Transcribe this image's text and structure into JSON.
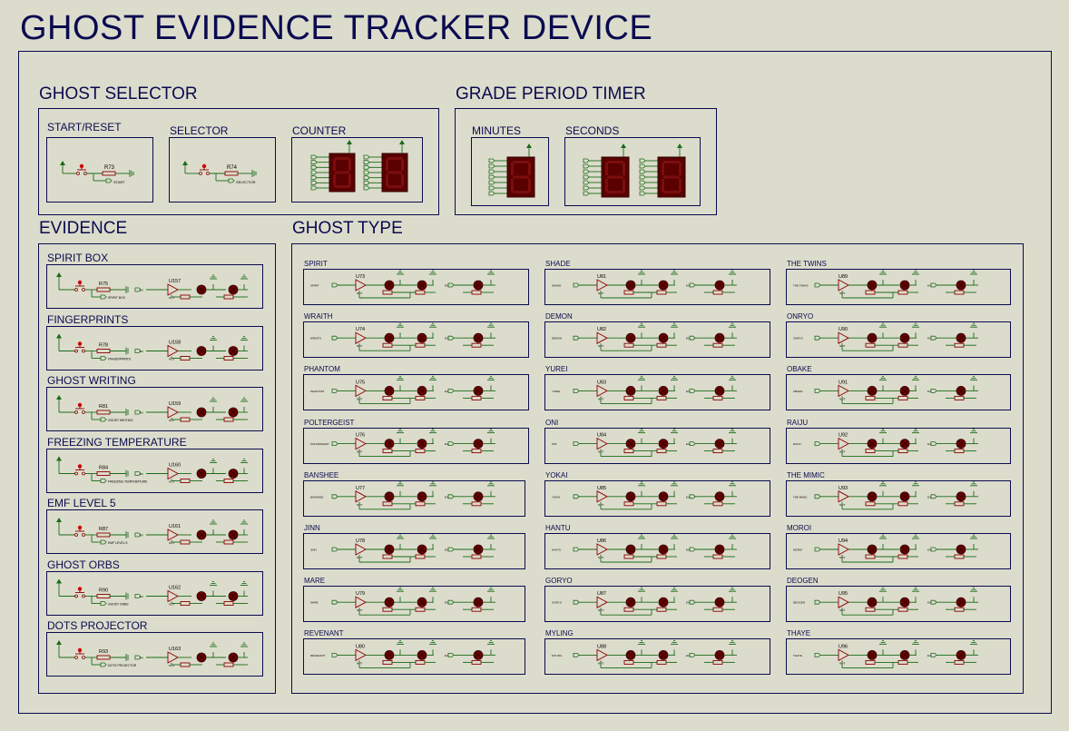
{
  "title": "GHOST EVIDENCE TRACKER DEVICE",
  "colors": {
    "background": "#dcdccc",
    "wire": "#1a6b1a",
    "component": "#8b0000",
    "text": "#0a0a50"
  },
  "ghost_selector": {
    "heading": "GHOST SELECTOR",
    "start_reset": {
      "label": "START/RESET",
      "resistor": "R73",
      "net": "START"
    },
    "selector": {
      "label": "SELECTOR",
      "resistor": "R74",
      "net": "SELECTOR"
    },
    "counter": {
      "label": "COUNTER"
    }
  },
  "timer": {
    "heading": "GRADE PERIOD TIMER",
    "minutes_label": "MINUTES",
    "seconds_label": "SECONDS"
  },
  "evidence": {
    "heading": "EVIDENCE",
    "items": [
      {
        "label": "SPIRIT BOX",
        "resistor": "R75",
        "chip": "U157",
        "net": "SPIRIT BOX"
      },
      {
        "label": "FINGERPRINTS",
        "resistor": "R78",
        "chip": "U158",
        "net": "FINGERPRINTS"
      },
      {
        "label": "GHOST WRITING",
        "resistor": "R81",
        "chip": "U159",
        "net": "GHOST WRITING"
      },
      {
        "label": "FREEZING TEMPERATURE",
        "resistor": "R84",
        "chip": "U160",
        "net": "FREEZING TEMPERATURE"
      },
      {
        "label": "EMF LEVEL 5",
        "resistor": "R87",
        "chip": "U161",
        "net": "EMF LEVEL 5"
      },
      {
        "label": "GHOST ORBS",
        "resistor": "R90",
        "chip": "U162",
        "net": "GHOST ORBS"
      },
      {
        "label": "DOTS PROJECTOR",
        "resistor": "R93",
        "chip": "U163",
        "net": "DOTS PROJECTOR"
      }
    ]
  },
  "ghost_type": {
    "heading": "GHOST TYPE",
    "columns": [
      [
        {
          "label": "SPIRIT",
          "chip": "U73"
        },
        {
          "label": "WRAITH",
          "chip": "U74"
        },
        {
          "label": "PHANTOM",
          "chip": "U75"
        },
        {
          "label": "POLTERGEIST",
          "chip": "U76"
        },
        {
          "label": "BANSHEE",
          "chip": "U77"
        },
        {
          "label": "JINN",
          "chip": "U78"
        },
        {
          "label": "MARE",
          "chip": "U79"
        },
        {
          "label": "REVENANT",
          "chip": "U80"
        }
      ],
      [
        {
          "label": "SHADE",
          "chip": "U81"
        },
        {
          "label": "DEMON",
          "chip": "U82"
        },
        {
          "label": "YUREI",
          "chip": "U83"
        },
        {
          "label": "ONI",
          "chip": "U84"
        },
        {
          "label": "YOKAI",
          "chip": "U85"
        },
        {
          "label": "HANTU",
          "chip": "U86"
        },
        {
          "label": "GORYO",
          "chip": "U87"
        },
        {
          "label": "MYLING",
          "chip": "U88"
        }
      ],
      [
        {
          "label": "THE TWINS",
          "chip": "U89"
        },
        {
          "label": "ONRYO",
          "chip": "U90"
        },
        {
          "label": "OBAKE",
          "chip": "U91"
        },
        {
          "label": "RAIJU",
          "chip": "U92"
        },
        {
          "label": "THE MIMIC",
          "chip": "U93"
        },
        {
          "label": "MOROI",
          "chip": "U94"
        },
        {
          "label": "DEOGEN",
          "chip": "U95"
        },
        {
          "label": "THAYE",
          "chip": "U96"
        }
      ]
    ]
  }
}
